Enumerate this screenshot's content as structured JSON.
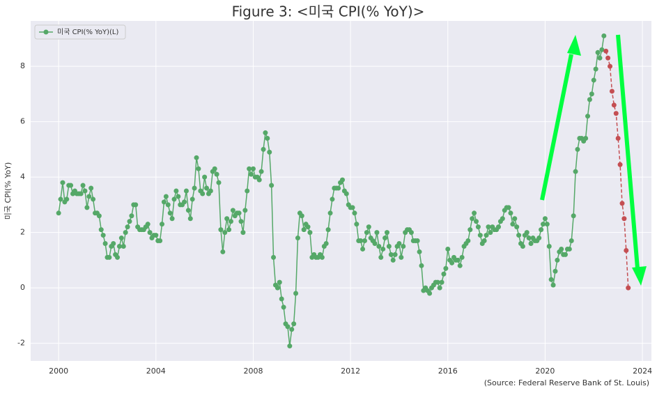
{
  "chart_data": {
    "type": "line",
    "title": "Figure 3: <미국 CPI(% YoY)>",
    "ylabel": "미국 CPI(% YoY)",
    "source": "(Source: Federal Reserve Bank of St. Louis)",
    "xlim": [
      1998.85,
      2024.37
    ],
    "ylim": [
      -2.64,
      9.64
    ],
    "xticks": [
      2000,
      2004,
      2008,
      2012,
      2016,
      2020,
      2024
    ],
    "yticks": [
      -2,
      0,
      2,
      4,
      6,
      8
    ],
    "grid": true,
    "legend": "upper left",
    "series": [
      {
        "name": "미국 CPI(% YoY)(L)",
        "color": "#55a868",
        "dashed": false,
        "x": [
          2000,
          2000.083,
          2000.167,
          2000.25,
          2000.333,
          2000.417,
          2000.5,
          2000.583,
          2000.667,
          2000.75,
          2000.833,
          2000.917,
          2001,
          2001.083,
          2001.167,
          2001.25,
          2001.333,
          2001.417,
          2001.5,
          2001.583,
          2001.667,
          2001.75,
          2001.833,
          2001.917,
          2002,
          2002.083,
          2002.167,
          2002.25,
          2002.333,
          2002.417,
          2002.5,
          2002.583,
          2002.667,
          2002.75,
          2002.833,
          2002.917,
          2003,
          2003.083,
          2003.167,
          2003.25,
          2003.333,
          2003.417,
          2003.5,
          2003.583,
          2003.667,
          2003.75,
          2003.833,
          2003.917,
          2004,
          2004.083,
          2004.167,
          2004.25,
          2004.333,
          2004.417,
          2004.5,
          2004.583,
          2004.667,
          2004.75,
          2004.833,
          2004.917,
          2005,
          2005.083,
          2005.167,
          2005.25,
          2005.333,
          2005.417,
          2005.5,
          2005.583,
          2005.667,
          2005.75,
          2005.833,
          2005.917,
          2006,
          2006.083,
          2006.167,
          2006.25,
          2006.333,
          2006.417,
          2006.5,
          2006.583,
          2006.667,
          2006.75,
          2006.833,
          2006.917,
          2007,
          2007.083,
          2007.167,
          2007.25,
          2007.333,
          2007.417,
          2007.5,
          2007.583,
          2007.667,
          2007.75,
          2007.833,
          2007.917,
          2008,
          2008.083,
          2008.167,
          2008.25,
          2008.333,
          2008.417,
          2008.5,
          2008.583,
          2008.667,
          2008.75,
          2008.833,
          2008.917,
          2009,
          2009.083,
          2009.167,
          2009.25,
          2009.333,
          2009.417,
          2009.5,
          2009.583,
          2009.667,
          2009.75,
          2009.833,
          2009.917,
          2010,
          2010.083,
          2010.167,
          2010.25,
          2010.333,
          2010.417,
          2010.5,
          2010.583,
          2010.667,
          2010.75,
          2010.833,
          2010.917,
          2011,
          2011.083,
          2011.167,
          2011.25,
          2011.333,
          2011.417,
          2011.5,
          2011.583,
          2011.667,
          2011.75,
          2011.833,
          2011.917,
          2012,
          2012.083,
          2012.167,
          2012.25,
          2012.333,
          2012.417,
          2012.5,
          2012.583,
          2012.667,
          2012.75,
          2012.833,
          2012.917,
          2013,
          2013.083,
          2013.167,
          2013.25,
          2013.333,
          2013.417,
          2013.5,
          2013.583,
          2013.667,
          2013.75,
          2013.833,
          2013.917,
          2014,
          2014.083,
          2014.167,
          2014.25,
          2014.333,
          2014.417,
          2014.5,
          2014.583,
          2014.667,
          2014.75,
          2014.833,
          2014.917,
          2015,
          2015.083,
          2015.167,
          2015.25,
          2015.333,
          2015.417,
          2015.5,
          2015.583,
          2015.667,
          2015.75,
          2015.833,
          2015.917,
          2016,
          2016.083,
          2016.167,
          2016.25,
          2016.333,
          2016.417,
          2016.5,
          2016.583,
          2016.667,
          2016.75,
          2016.833,
          2016.917,
          2017,
          2017.083,
          2017.167,
          2017.25,
          2017.333,
          2017.417,
          2017.5,
          2017.583,
          2017.667,
          2017.75,
          2017.833,
          2017.917,
          2018,
          2018.083,
          2018.167,
          2018.25,
          2018.333,
          2018.417,
          2018.5,
          2018.583,
          2018.667,
          2018.75,
          2018.833,
          2018.917,
          2019,
          2019.083,
          2019.167,
          2019.25,
          2019.333,
          2019.417,
          2019.5,
          2019.583,
          2019.667,
          2019.75,
          2019.833,
          2019.917,
          2020,
          2020.083,
          2020.167,
          2020.25,
          2020.333,
          2020.417,
          2020.5,
          2020.583,
          2020.667,
          2020.75,
          2020.833,
          2020.917,
          2021,
          2021.083,
          2021.167,
          2021.25,
          2021.333,
          2021.417,
          2021.5,
          2021.583,
          2021.667,
          2021.75,
          2021.833,
          2021.917,
          2022,
          2022.083,
          2022.167,
          2022.25,
          2022.333,
          2022.417
        ],
        "values": [
          2.7,
          3.2,
          3.8,
          3.1,
          3.2,
          3.7,
          3.7,
          3.4,
          3.5,
          3.4,
          3.4,
          3.4,
          3.7,
          3.5,
          2.9,
          3.3,
          3.6,
          3.2,
          2.7,
          2.7,
          2.6,
          2.1,
          1.9,
          1.6,
          1.1,
          1.1,
          1.5,
          1.6,
          1.2,
          1.1,
          1.5,
          1.8,
          1.5,
          2.0,
          2.2,
          2.4,
          2.6,
          3.0,
          3.0,
          2.2,
          2.1,
          2.1,
          2.1,
          2.2,
          2.3,
          2.0,
          1.8,
          1.9,
          1.9,
          1.7,
          1.7,
          2.3,
          3.1,
          3.3,
          3.0,
          2.7,
          2.5,
          3.2,
          3.5,
          3.3,
          3.0,
          3.0,
          3.1,
          3.5,
          2.8,
          2.5,
          3.2,
          3.6,
          4.7,
          4.3,
          3.5,
          3.4,
          4.0,
          3.6,
          3.4,
          3.5,
          4.2,
          4.3,
          4.1,
          3.8,
          2.1,
          1.3,
          2.0,
          2.5,
          2.1,
          2.4,
          2.8,
          2.6,
          2.7,
          2.7,
          2.4,
          2.0,
          2.8,
          3.5,
          4.3,
          4.1,
          4.3,
          4.0,
          4.0,
          3.9,
          4.2,
          5.0,
          5.6,
          5.4,
          4.9,
          3.7,
          1.1,
          0.1,
          0.0,
          0.2,
          -0.4,
          -0.7,
          -1.3,
          -1.4,
          -2.1,
          -1.5,
          -1.3,
          -0.2,
          1.8,
          2.7,
          2.6,
          2.1,
          2.3,
          2.2,
          2.0,
          1.1,
          1.2,
          1.1,
          1.1,
          1.2,
          1.1,
          1.5,
          1.6,
          2.1,
          2.7,
          3.2,
          3.6,
          3.6,
          3.6,
          3.8,
          3.9,
          3.5,
          3.4,
          3.0,
          2.9,
          2.9,
          2.7,
          2.3,
          1.7,
          1.7,
          1.4,
          1.7,
          2.0,
          2.2,
          1.8,
          1.7,
          1.6,
          2.0,
          1.5,
          1.1,
          1.4,
          1.8,
          2.0,
          1.5,
          1.2,
          1.0,
          1.2,
          1.5,
          1.6,
          1.1,
          1.5,
          2.0,
          2.1,
          2.1,
          2.0,
          1.7,
          1.7,
          1.7,
          1.3,
          0.8,
          -0.1,
          0.0,
          -0.1,
          -0.2,
          0.0,
          0.1,
          0.2,
          0.2,
          0.0,
          0.2,
          0.5,
          0.7,
          1.4,
          1.0,
          0.9,
          1.1,
          1.0,
          1.0,
          0.8,
          1.1,
          1.5,
          1.6,
          1.7,
          2.1,
          2.5,
          2.7,
          2.4,
          2.2,
          1.9,
          1.6,
          1.7,
          1.9,
          2.2,
          2.0,
          2.2,
          2.1,
          2.1,
          2.2,
          2.4,
          2.5,
          2.8,
          2.9,
          2.9,
          2.7,
          2.3,
          2.5,
          2.2,
          1.9,
          1.6,
          1.5,
          1.9,
          2.0,
          1.8,
          1.6,
          1.8,
          1.7,
          1.7,
          1.8,
          2.1,
          2.3,
          2.5,
          2.3,
          1.5,
          0.3,
          0.1,
          0.6,
          1.0,
          1.3,
          1.4,
          1.2,
          1.2,
          1.4,
          1.4,
          1.7,
          2.6,
          4.2,
          5.0,
          5.4,
          5.4,
          5.3,
          5.4,
          6.2,
          6.8,
          7.0,
          7.5,
          7.9,
          8.5,
          8.3,
          8.6,
          9.1
        ]
      },
      {
        "color": "#c44e52",
        "dashed": true,
        "x": [
          2022.5,
          2022.583,
          2022.667,
          2022.75,
          2022.833,
          2022.917,
          2023,
          2023.083,
          2023.167,
          2023.25,
          2023.333,
          2023.417
        ],
        "values": [
          8.55,
          8.3,
          8.0,
          7.1,
          6.6,
          6.3,
          5.4,
          4.45,
          3.05,
          2.5,
          1.35,
          0.0
        ]
      }
    ]
  }
}
